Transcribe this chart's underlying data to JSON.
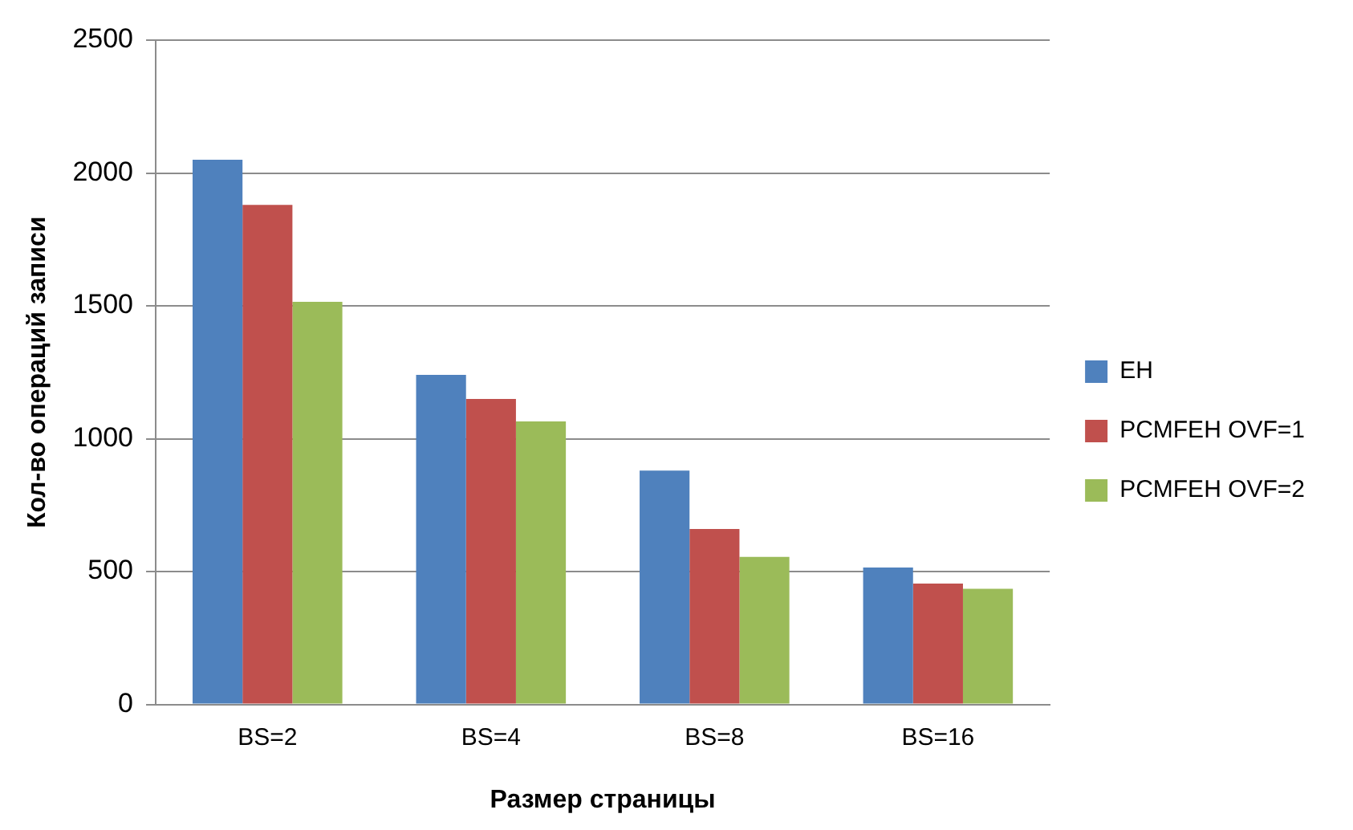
{
  "chart_data": {
    "type": "bar",
    "xlabel": "Размер страницы",
    "ylabel": "Кол-во операций записи",
    "categories": [
      "BS=2",
      "BS=4",
      "BS=8",
      "BS=16"
    ],
    "series": [
      {
        "name": "EH",
        "color": "#4f81bd",
        "values": [
          2050,
          1240,
          880,
          515
        ]
      },
      {
        "name": "PCMFEH OVF=1",
        "color": "#c0504d",
        "values": [
          1880,
          1150,
          660,
          455
        ]
      },
      {
        "name": "PCMFEH OVF=2",
        "color": "#9bbb59",
        "values": [
          1515,
          1065,
          555,
          435
        ]
      }
    ],
    "ylim": [
      0,
      2500
    ],
    "yticks": [
      0,
      500,
      1000,
      1500,
      2000,
      2500
    ],
    "grid": "y",
    "legend": "right"
  }
}
